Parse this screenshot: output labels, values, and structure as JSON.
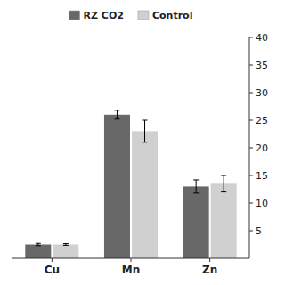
{
  "chart_data": {
    "type": "bar",
    "categories": [
      "Cu",
      "Mn",
      "Zn"
    ],
    "series": [
      {
        "name": "RZ CO2",
        "color": "#686868",
        "values": [
          2.5,
          26.0,
          13.0
        ],
        "errors": [
          0.2,
          0.8,
          1.2
        ]
      },
      {
        "name": "Control",
        "color": "#d0d0d0",
        "values": [
          2.5,
          23.0,
          13.5
        ],
        "errors": [
          0.15,
          2.0,
          1.5
        ]
      }
    ],
    "ylim": [
      0,
      40
    ],
    "yticks": [
      5,
      10,
      15,
      20,
      25,
      30,
      35,
      40
    ],
    "grid": false,
    "legend": "top"
  }
}
